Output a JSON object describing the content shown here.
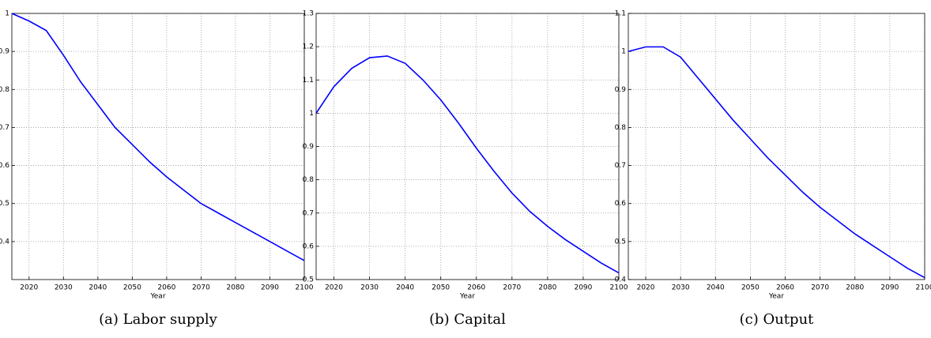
{
  "chart_data": [
    {
      "type": "line",
      "caption": "(a)  Labor supply",
      "xlabel": "Year",
      "color": "#0000ff",
      "grid": true,
      "x": [
        2015,
        2020,
        2025,
        2030,
        2035,
        2040,
        2045,
        2050,
        2055,
        2060,
        2065,
        2070,
        2075,
        2080,
        2085,
        2090,
        2095,
        2100
      ],
      "values": [
        1.0,
        0.98,
        0.955,
        0.89,
        0.82,
        0.76,
        0.7,
        0.655,
        0.61,
        0.57,
        0.535,
        0.5,
        0.475,
        0.45,
        0.425,
        0.4,
        0.375,
        0.35
      ],
      "xlim": [
        2015,
        2100
      ],
      "ylim": [
        0.3,
        1
      ],
      "xticks": [
        2020,
        2030,
        2040,
        2050,
        2060,
        2070,
        2080,
        2090,
        2100
      ],
      "yticks": [
        0.4,
        0.5,
        0.6,
        0.7,
        0.8,
        0.9,
        1
      ]
    },
    {
      "type": "line",
      "caption": "(b)  Capital",
      "xlabel": "Year",
      "color": "#0000ff",
      "grid": true,
      "x": [
        2015,
        2020,
        2025,
        2030,
        2035,
        2040,
        2045,
        2050,
        2055,
        2060,
        2065,
        2070,
        2075,
        2080,
        2085,
        2090,
        2095,
        2100
      ],
      "values": [
        1.0,
        1.08,
        1.135,
        1.167,
        1.172,
        1.15,
        1.1,
        1.04,
        0.97,
        0.895,
        0.825,
        0.76,
        0.705,
        0.66,
        0.62,
        0.585,
        0.55,
        0.52
      ],
      "xlim": [
        2015,
        2100
      ],
      "ylim": [
        0.5,
        1.3
      ],
      "xticks": [
        2020,
        2030,
        2040,
        2050,
        2060,
        2070,
        2080,
        2090,
        2100
      ],
      "yticks": [
        0.5,
        0.6,
        0.7,
        0.8,
        0.9,
        1,
        1.1,
        1.2,
        1.3
      ]
    },
    {
      "type": "line",
      "caption": "(c)  Output",
      "xlabel": "Year",
      "color": "#0000ff",
      "grid": true,
      "x": [
        2015,
        2020,
        2025,
        2030,
        2035,
        2040,
        2045,
        2050,
        2055,
        2060,
        2065,
        2070,
        2075,
        2080,
        2085,
        2090,
        2095,
        2100
      ],
      "values": [
        1.0,
        1.012,
        1.012,
        0.985,
        0.93,
        0.875,
        0.82,
        0.77,
        0.72,
        0.675,
        0.63,
        0.59,
        0.555,
        0.52,
        0.49,
        0.46,
        0.43,
        0.405
      ],
      "xlim": [
        2015,
        2100
      ],
      "ylim": [
        0.4,
        1.1
      ],
      "xticks": [
        2020,
        2030,
        2040,
        2050,
        2060,
        2070,
        2080,
        2090,
        2100
      ],
      "yticks": [
        0.4,
        0.5,
        0.6,
        0.7,
        0.8,
        0.9,
        1,
        1.1
      ]
    }
  ]
}
